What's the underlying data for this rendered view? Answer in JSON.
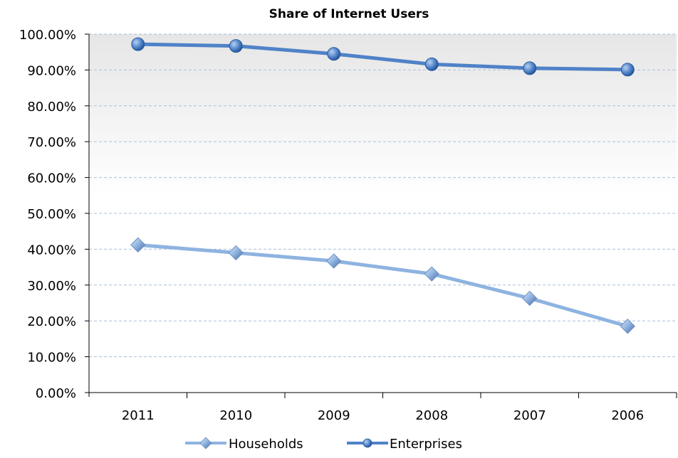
{
  "chart_data": {
    "type": "line",
    "title": "Share of Internet Users",
    "xlabel": "",
    "ylabel": "",
    "categories": [
      "2011",
      "2010",
      "2009",
      "2008",
      "2007",
      "2006"
    ],
    "ylim": [
      0,
      100
    ],
    "yticks": [
      "0.00%",
      "10.00%",
      "20.00%",
      "30.00%",
      "40.00%",
      "50.00%",
      "60.00%",
      "70.00%",
      "80.00%",
      "90.00%",
      "100.00%"
    ],
    "grid": true,
    "legend_position": "bottom",
    "series": [
      {
        "name": "Households",
        "values": [
          41.2,
          39.0,
          36.7,
          33.1,
          26.3,
          18.5
        ],
        "color": "#8eb3e0",
        "marker": "diamond"
      },
      {
        "name": "Enterprises",
        "values": [
          97.2,
          96.7,
          94.5,
          91.6,
          90.5,
          90.1
        ],
        "color": "#4f82c8",
        "marker": "circle"
      }
    ]
  }
}
